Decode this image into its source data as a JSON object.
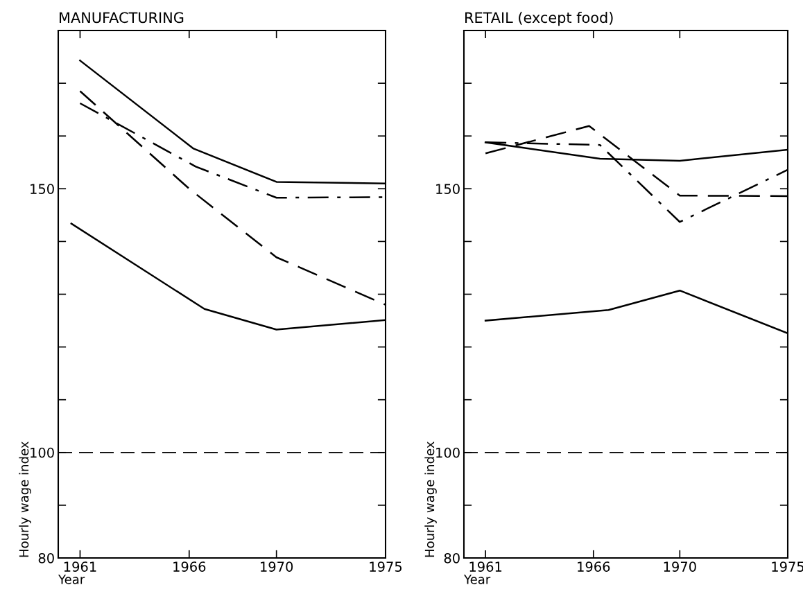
{
  "chart_data": [
    {
      "type": "line",
      "title": "MANUFACTURING",
      "xlabel": "Year",
      "ylabel": "Hourly wage index",
      "xlim": [
        1960,
        1975
      ],
      "xticks": [
        1961,
        1966,
        1970,
        1975
      ],
      "ylim": [
        80,
        180
      ],
      "yticks": [
        80,
        {
          "value": 90,
          "label": null
        },
        100,
        {
          "value": 110,
          "label": null
        },
        {
          "value": 120,
          "label": null
        },
        {
          "value": 130,
          "label": null
        },
        {
          "value": 140,
          "label": null
        },
        150,
        {
          "value": 160,
          "label": null
        },
        {
          "value": 170,
          "label": null
        }
      ],
      "grid": false,
      "legend": false,
      "marker": "none",
      "ref_lines": [
        {
          "axis": "y",
          "value": 100,
          "line_style": "dashed",
          "color": "#000000"
        }
      ],
      "series": [
        {
          "color": "#000000",
          "line_style": "solid",
          "x": [
            1961,
            1966.2,
            1970,
            1975
          ],
          "values": [
            174.3,
            157.6,
            151.3,
            151.0
          ]
        },
        {
          "color": "#000000",
          "line_style": "dashdot",
          "x": [
            1961,
            1966.3,
            1970,
            1975
          ],
          "values": [
            166.2,
            154.2,
            148.3,
            148.4
          ]
        },
        {
          "color": "#000000",
          "line_style": "dashed",
          "x": [
            1961,
            1966,
            1970,
            1975
          ],
          "values": [
            168.5,
            150.0,
            137.0,
            128.0
          ]
        },
        {
          "color": "#000000",
          "line_style": "solid",
          "x": [
            1960.6,
            1966.7,
            1970,
            1975
          ],
          "values": [
            143.4,
            127.2,
            123.3,
            125.1
          ]
        }
      ]
    },
    {
      "type": "line",
      "title": "RETAIL (except food)",
      "xlabel": "Year",
      "ylabel": "Hourly wage index",
      "xlim": [
        1960,
        1975
      ],
      "xticks": [
        1961,
        1966,
        1970,
        1975
      ],
      "ylim": [
        80,
        180
      ],
      "yticks": [
        80,
        {
          "value": 90,
          "label": null
        },
        100,
        {
          "value": 110,
          "label": null
        },
        {
          "value": 120,
          "label": null
        },
        {
          "value": 130,
          "label": null
        },
        {
          "value": 140,
          "label": null
        },
        150,
        {
          "value": 160,
          "label": null
        },
        {
          "value": 170,
          "label": null
        }
      ],
      "grid": false,
      "legend": false,
      "marker": "none",
      "ref_lines": [
        {
          "axis": "y",
          "value": 100,
          "line_style": "dashed",
          "color": "#000000"
        }
      ],
      "series": [
        {
          "color": "#000000",
          "line_style": "solid",
          "x": [
            1961,
            1966.3,
            1970,
            1975
          ],
          "values": [
            158.8,
            155.7,
            155.3,
            157.4
          ]
        },
        {
          "color": "#000000",
          "line_style": "dashdot",
          "x": [
            1961,
            1966.3,
            1970,
            1975
          ],
          "values": [
            158.8,
            158.3,
            143.7,
            153.6
          ]
        },
        {
          "color": "#000000",
          "line_style": "dashed",
          "x": [
            1961,
            1965.8,
            1970,
            1975
          ],
          "values": [
            156.7,
            161.9,
            148.7,
            148.6
          ]
        },
        {
          "color": "#000000",
          "line_style": "solid",
          "x": [
            1961,
            1966.7,
            1970,
            1975
          ],
          "values": [
            125.0,
            127.0,
            130.7,
            122.6
          ]
        }
      ]
    }
  ]
}
